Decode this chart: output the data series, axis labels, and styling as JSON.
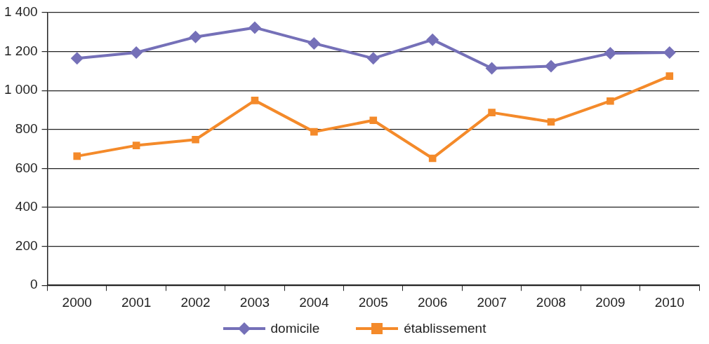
{
  "chart_data": {
    "type": "line",
    "categories": [
      "2000",
      "2001",
      "2002",
      "2003",
      "2004",
      "2005",
      "2006",
      "2007",
      "2008",
      "2009",
      "2010"
    ],
    "series": [
      {
        "name": "domicile",
        "color": "#7570b8",
        "marker": "diamond",
        "values": [
          1165,
          1195,
          1275,
          1323,
          1242,
          1165,
          1261,
          1114,
          1125,
          1191,
          1195
        ]
      },
      {
        "name": "établissement",
        "color": "#f48a2a",
        "marker": "square",
        "values": [
          663,
          718,
          748,
          949,
          788,
          847,
          652,
          887,
          839,
          946,
          1074
        ]
      }
    ],
    "ylim": [
      0,
      1400
    ],
    "yticks": [
      0,
      200,
      400,
      600,
      800,
      {
        "value": 1000,
        "label": "1 000"
      },
      {
        "value": 1200,
        "label": "1 200"
      },
      {
        "value": 1400,
        "label": "1 400"
      }
    ],
    "grid": "y",
    "legend": "bottom",
    "line_style": "solid"
  }
}
